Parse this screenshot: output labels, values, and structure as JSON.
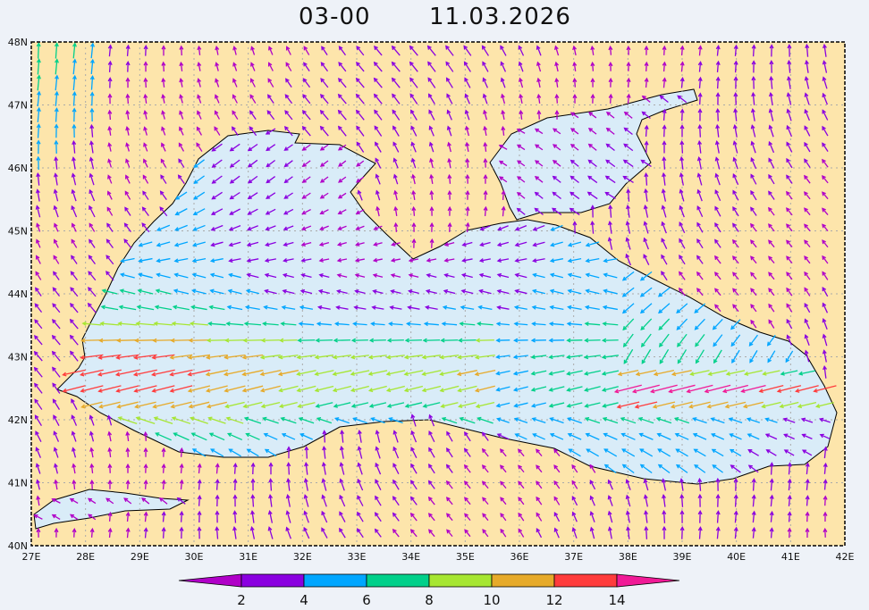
{
  "title": {
    "time": "03-00",
    "date": "11.03.2026"
  },
  "map": {
    "lat_labels": [
      "48N",
      "47N",
      "46N",
      "45N",
      "44N",
      "43N",
      "42N",
      "41N",
      "40N"
    ],
    "lon_labels": [
      "27E",
      "28E",
      "29E",
      "30E",
      "31E",
      "32E",
      "33E",
      "34E",
      "35E",
      "36E",
      "37E",
      "38E",
      "39E",
      "40E",
      "41E",
      "42E"
    ],
    "land_color": "#fde5ab",
    "sea_color": "#d9ecf8"
  },
  "colorbar": {
    "labels": [
      "2",
      "4",
      "6",
      "8",
      "10",
      "12",
      "14"
    ],
    "colors": [
      "#b000c8",
      "#8a00e0",
      "#00a6ff",
      "#00d08a",
      "#a6e632",
      "#e6aa2a",
      "#ff3c3c",
      "#f01a96"
    ]
  }
}
